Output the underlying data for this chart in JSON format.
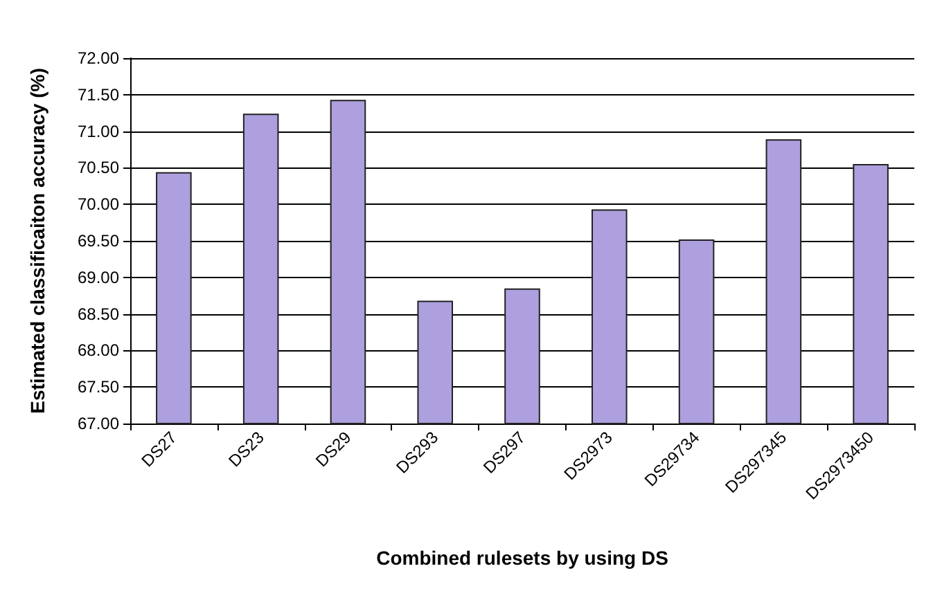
{
  "chart_data": {
    "type": "bar",
    "xlabel": "Combined rulesets by using DS",
    "ylabel": "Estimated classificaiton accuracy (%)",
    "categories": [
      "DS27",
      "DS23",
      "DS29",
      "DS293",
      "DS297",
      "DS2973",
      "DS29734",
      "DS297345",
      "DS2973450"
    ],
    "values": [
      70.44,
      71.24,
      71.43,
      68.68,
      68.85,
      69.93,
      69.52,
      70.89,
      70.55
    ],
    "color": "#aea0de",
    "ylim": [
      67,
      72
    ],
    "yticks": [
      {
        "value": 67,
        "label": "67.00"
      },
      {
        "value": 67.5,
        "label": "67.50"
      },
      {
        "value": 68,
        "label": "68.00"
      },
      {
        "value": 68.5,
        "label": "68.50"
      },
      {
        "value": 69,
        "label": "69.00"
      },
      {
        "value": 69.5,
        "label": "69.50"
      },
      {
        "value": 70,
        "label": "70.00"
      },
      {
        "value": 70.5,
        "label": "70.50"
      },
      {
        "value": 71,
        "label": "71.00"
      },
      {
        "value": 71.5,
        "label": "71.50"
      },
      {
        "value": 72,
        "label": "72.00"
      }
    ],
    "grid": "y"
  }
}
